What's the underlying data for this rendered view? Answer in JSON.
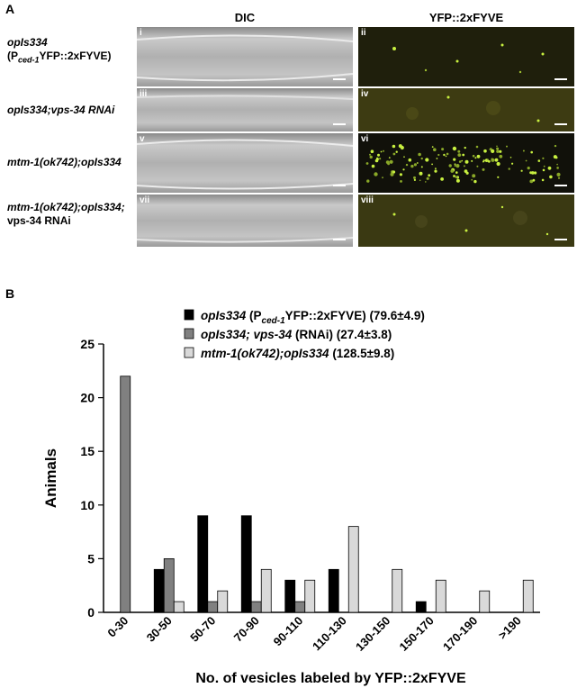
{
  "figure": {
    "panel_a_letter": "A",
    "panel_b_letter": "B",
    "column_headers": {
      "dic": "DIC",
      "yfp": "YFP::2xFYVE"
    },
    "rows": [
      {
        "line1": "opIs334",
        "line2": "(Pced-1YFP::2xFYVE)",
        "left_numeral": "i",
        "right_numeral": "ii"
      },
      {
        "line1": "opIs334;vps-34 RNAi",
        "line2": "",
        "left_numeral": "iii",
        "right_numeral": "iv"
      },
      {
        "line1": "mtm-1(ok742);opIs334",
        "line2": "",
        "left_numeral": "v",
        "right_numeral": "vi"
      },
      {
        "line1": "mtm-1(ok742);opIs334;",
        "line2": "vps-34 RNAi",
        "left_numeral": "vii",
        "right_numeral": "viii"
      }
    ],
    "colors": {
      "dic_gray": "#b5b5b5",
      "fluor_dark": "#1f1f0c",
      "fluor_mid": "#3d3b12",
      "yfp_spot": "#c8f040"
    }
  },
  "chart_data": {
    "type": "bar",
    "title": "",
    "xlabel": "No. of vesicles labeled by YFP::2xFYVE",
    "ylabel": "Animals",
    "ylim": [
      0,
      25
    ],
    "yticks": [
      0,
      5,
      10,
      15,
      20,
      25
    ],
    "categories": [
      "0-30",
      "30-50",
      "50-70",
      "70-90",
      "90-110",
      "110-130",
      "130-150",
      "150-170",
      "170-190",
      ">190"
    ],
    "series": [
      {
        "name": "opIs334 (Pced-1YFP::2xFYVE) (79.6±4.9)",
        "color": "#000000",
        "values": [
          0,
          4,
          9,
          9,
          3,
          4,
          0,
          1,
          0,
          0
        ]
      },
      {
        "name": "opIs334; vps-34 (RNAi) (27.4±3.8)",
        "color": "#808080",
        "values": [
          22,
          5,
          1,
          1,
          1,
          0,
          0,
          0,
          0,
          0
        ]
      },
      {
        "name": "mtm-1(ok742);opIs334 (128.5±9.8)",
        "color": "#d9d9d9",
        "values": [
          0,
          1,
          2,
          4,
          3,
          8,
          4,
          3,
          2,
          3
        ]
      }
    ],
    "legend_position": "top-right",
    "grid": false
  }
}
